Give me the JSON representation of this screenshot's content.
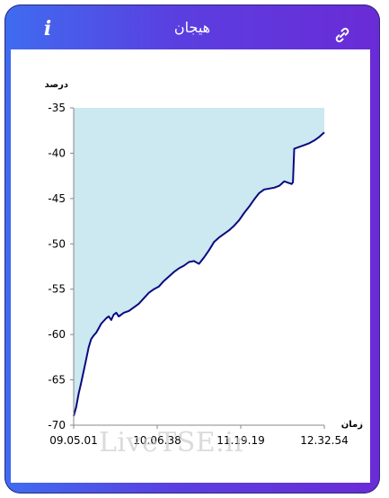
{
  "header": {
    "title": "هیجان",
    "info_icon": "info-icon",
    "link_icon": "link-icon"
  },
  "watermark": "LiveTSE.ir",
  "colors": {
    "frame_start": "#3f6cf0",
    "frame_end": "#6a2bd6",
    "area_fill": "#cce8f0",
    "line": "#0a0a80"
  },
  "chart_data": {
    "type": "area",
    "title": "",
    "ylabel": "درصد",
    "xlabel": "زمان",
    "ylim": [
      -70,
      -35
    ],
    "yticks": [
      -35,
      -40,
      -45,
      -50,
      -55,
      -60,
      -65,
      -70
    ],
    "xticks": [
      "09.05.01",
      "10.06.38",
      "11.19.19",
      "12.32.54"
    ],
    "grid": false,
    "series": [
      {
        "x": [
          0,
          0.01,
          0.02,
          0.03,
          0.04,
          0.05,
          0.06,
          0.07,
          0.08,
          0.09,
          0.1,
          0.11,
          0.12,
          0.13,
          0.14,
          0.15,
          0.16,
          0.17,
          0.18,
          0.19,
          0.2,
          0.22,
          0.24,
          0.26,
          0.28,
          0.3,
          0.32,
          0.34,
          0.36,
          0.38,
          0.4,
          0.42,
          0.44,
          0.46,
          0.48,
          0.5,
          0.52,
          0.54,
          0.56,
          0.58,
          0.6,
          0.62,
          0.64,
          0.66,
          0.68,
          0.7,
          0.72,
          0.74,
          0.76,
          0.78,
          0.8,
          0.82,
          0.84,
          0.86,
          0.87,
          0.875,
          0.88,
          0.9,
          0.92,
          0.94,
          0.96,
          0.98,
          1.0
        ],
        "values": [
          -69.0,
          -68.0,
          -66.5,
          -65.3,
          -64.0,
          -62.7,
          -61.4,
          -60.5,
          -60.1,
          -59.8,
          -59.3,
          -58.8,
          -58.5,
          -58.2,
          -58.0,
          -58.4,
          -57.8,
          -57.6,
          -58.0,
          -57.8,
          -57.6,
          -57.4,
          -57.0,
          -56.6,
          -56.0,
          -55.4,
          -55.0,
          -54.7,
          -54.1,
          -53.6,
          -53.1,
          -52.7,
          -52.4,
          -52.0,
          -51.9,
          -52.2,
          -51.5,
          -50.7,
          -49.8,
          -49.3,
          -48.9,
          -48.5,
          -48.0,
          -47.4,
          -46.6,
          -45.9,
          -45.1,
          -44.4,
          -44.0,
          -43.9,
          -43.8,
          -43.6,
          -43.1,
          -43.3,
          -43.4,
          -43.2,
          -39.5,
          -39.3,
          -39.1,
          -38.9,
          -38.6,
          -38.2,
          -37.7
        ]
      }
    ]
  }
}
